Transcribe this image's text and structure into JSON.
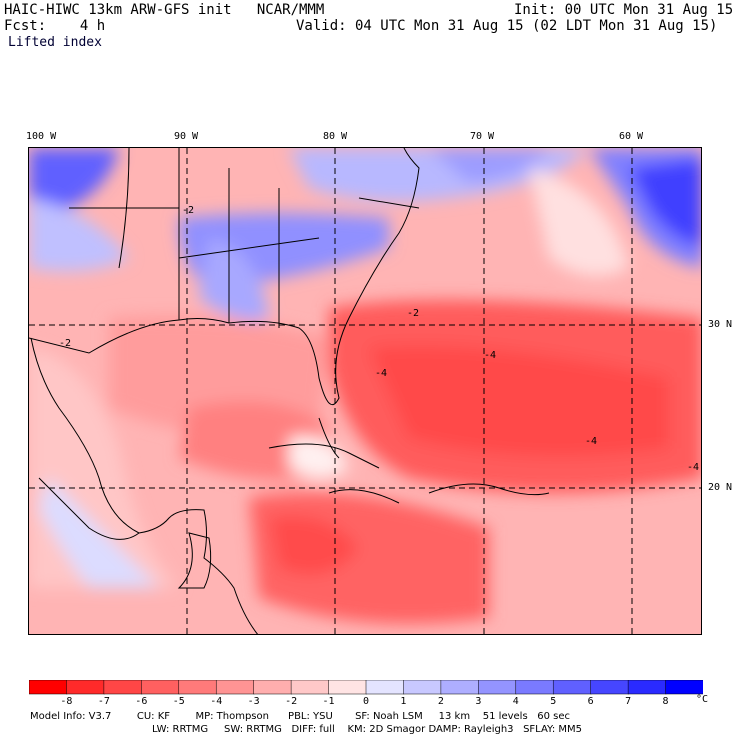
{
  "header": {
    "left_line1": "HAIC-HIWC 13km ARW-GFS init   NCAR/MMM",
    "left_line2": "Fcst:    4 h",
    "right_line1": "Init: 00 UTC Mon 31 Aug 15",
    "right_line2": "Valid: 04 UTC Mon 31 Aug 15 (02 LDT Mon 31 Aug 15)",
    "field": "Lifted index"
  },
  "map": {
    "lon_labels": [
      "100 W",
      "90 W",
      "80 W",
      "70 W",
      "60 W"
    ],
    "lat_labels": [
      "30 N",
      "20 N"
    ],
    "contour_labels": [
      "-2",
      "-2",
      "-4",
      "-4",
      "-4",
      "-4",
      "-2"
    ]
  },
  "colorbar": {
    "ticks": [
      "-8",
      "-7",
      "-6",
      "-5",
      "-4",
      "-3",
      "-2",
      "-1",
      "0",
      "1",
      "2",
      "3",
      "4",
      "5",
      "6",
      "7",
      "8"
    ],
    "unit": "°C",
    "colors": [
      "#ff0000",
      "#ff2a2a",
      "#ff4646",
      "#ff6060",
      "#ff7a7a",
      "#ff9494",
      "#ffaeae",
      "#ffc8c8",
      "#ffe4e4",
      "#e4e4ff",
      "#c8c8ff",
      "#aeaeff",
      "#9494ff",
      "#7a7aff",
      "#6060ff",
      "#4646ff",
      "#2a2aff",
      "#0000ff"
    ]
  },
  "footer": {
    "line1": "Model Info: V3.7        CU: KF        MP: Thompson      PBL: YSU       SF: Noah LSM     13 km    51 levels   60 sec",
    "line2": "LW: RRTMG     SW: RRTMG   DIFF: full    KM: 2D Smagor DAMP: Rayleigh3   SFLAY: MM5"
  }
}
